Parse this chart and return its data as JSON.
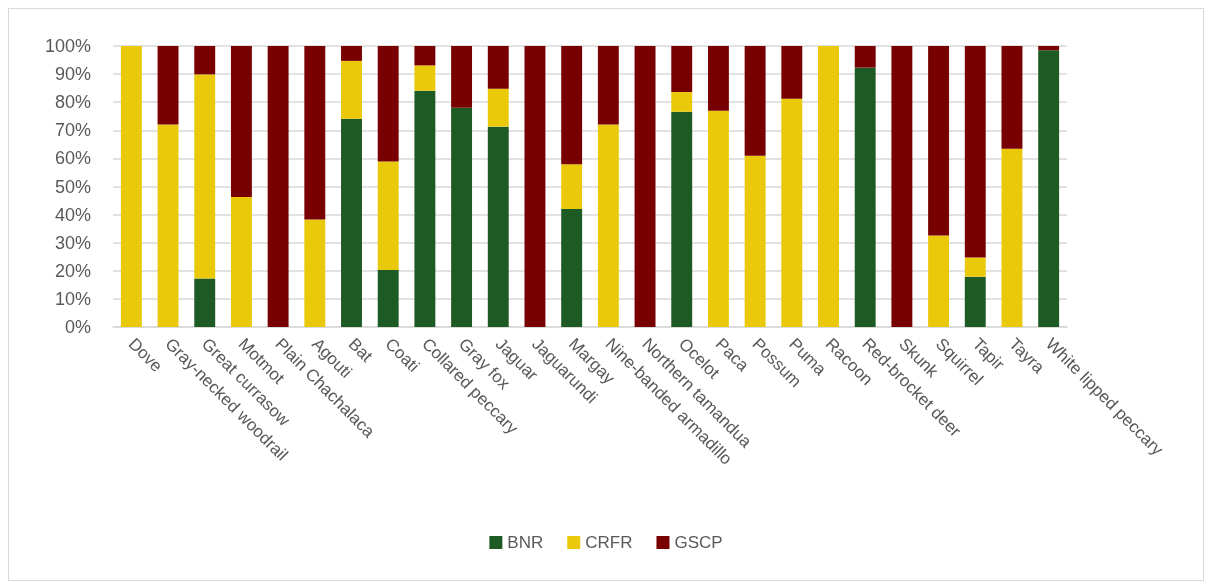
{
  "chart_data": {
    "type": "bar",
    "stacked": true,
    "categories": [
      "Dove",
      "Gray-necked woodrail",
      "Great currasow",
      "Motmot",
      "Plain Chachalaca",
      "Agouti",
      "Bat",
      "Coati",
      "Collared peccary",
      "Gray fox",
      "Jaguar",
      "Jaguarundi",
      "Margay",
      "Nine-banded armadillo",
      "Northern tamandua",
      "Ocelot",
      "Paca",
      "Possum",
      "Puma",
      "Racoon",
      "Red-brocket deer",
      "Skunk",
      "Squirrel",
      "Tapir",
      "Tayra",
      "White lipped peccary"
    ],
    "series": [
      {
        "name": "BNR",
        "color": "#1e5b24",
        "values": [
          0,
          0,
          17.3,
          0,
          0,
          0,
          74.1,
          20.3,
          84.1,
          78.0,
          71.3,
          0,
          42.0,
          0,
          0,
          76.6,
          0,
          0,
          0,
          0,
          92.3,
          0,
          0,
          17.9,
          0,
          98.5
        ]
      },
      {
        "name": "CRFR",
        "color": "#eac90a",
        "values": [
          100,
          72.1,
          72.6,
          46.3,
          0,
          38.3,
          20.6,
          38.6,
          9.0,
          0,
          13.5,
          0,
          15.9,
          72.1,
          0,
          7.0,
          77.0,
          60.9,
          81.2,
          100,
          0,
          0,
          32.6,
          6.8,
          63.4,
          0
        ]
      },
      {
        "name": "GSCP",
        "color": "#780000",
        "values": [
          0,
          27.9,
          10.1,
          53.7,
          100,
          61.7,
          5.3,
          41.1,
          6.9,
          22.0,
          15.2,
          100,
          42.1,
          27.9,
          100,
          16.4,
          23.0,
          39.1,
          18.8,
          0,
          7.7,
          100,
          67.4,
          75.3,
          36.6,
          1.5
        ]
      }
    ],
    "ylim": [
      0,
      100
    ],
    "yticks": [
      {
        "value": 0,
        "label": "0%"
      },
      {
        "value": 10,
        "label": "10%"
      },
      {
        "value": 20,
        "label": "20%"
      },
      {
        "value": 30,
        "label": "30%"
      },
      {
        "value": 40,
        "label": "40%"
      },
      {
        "value": 50,
        "label": "50%"
      },
      {
        "value": 60,
        "label": "60%"
      },
      {
        "value": 70,
        "label": "70%"
      },
      {
        "value": 80,
        "label": "80%"
      },
      {
        "value": 90,
        "label": "90%"
      },
      {
        "value": 100,
        "label": "100%"
      }
    ],
    "grid": "y",
    "legend": "bottom"
  }
}
